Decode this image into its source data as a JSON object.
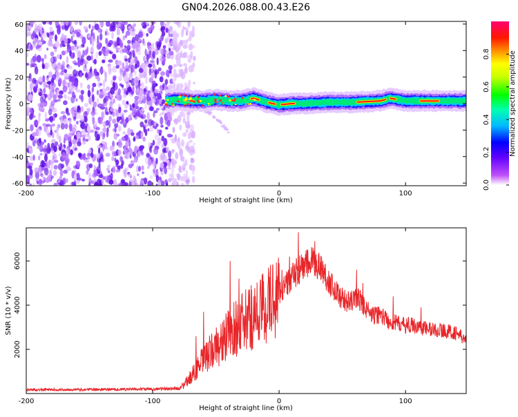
{
  "title": "GN04.2026.088.00.43.E26",
  "chart_data": [
    {
      "type": "heatmap",
      "name": "spectrogram",
      "xlabel": "Height of straight line (km)",
      "ylabel": "Frequency (Hz)",
      "xlim": [
        -200,
        148
      ],
      "ylim": [
        -62,
        62
      ],
      "xticks": [
        -200,
        -100,
        0,
        100
      ],
      "yticks": [
        60,
        40,
        20,
        0,
        -20,
        -40,
        -60
      ],
      "ridge": {
        "x_start": -90,
        "x_end": 148,
        "center_freq": 1,
        "points": [
          [
            -90,
            2
          ],
          [
            -80,
            3
          ],
          [
            -70,
            2
          ],
          [
            -60,
            2
          ],
          [
            -50,
            3
          ],
          [
            -40,
            2
          ],
          [
            -30,
            2
          ],
          [
            -20,
            4
          ],
          [
            -10,
            1
          ],
          [
            0,
            -1
          ],
          [
            10,
            0
          ],
          [
            20,
            0
          ],
          [
            40,
            1
          ],
          [
            60,
            1
          ],
          [
            80,
            2
          ],
          [
            88,
            4
          ],
          [
            100,
            2
          ],
          [
            120,
            2
          ],
          [
            148,
            2
          ]
        ],
        "hot_segments": [
          [
            -75,
            -68
          ],
          [
            -22,
            -16
          ],
          [
            -8,
            -3
          ],
          [
            2,
            12
          ],
          [
            62,
            84
          ],
          [
            88,
            92
          ],
          [
            112,
            126
          ]
        ]
      },
      "noise_region": {
        "x_start": -200,
        "x_end": -77,
        "amplitude_range": [
          0.0,
          0.25
        ]
      },
      "drift_tail": {
        "points": [
          [
            -62,
            -4
          ],
          [
            -50,
            -10
          ],
          [
            -40,
            -22
          ]
        ]
      },
      "colorbar": {
        "label": "Normalized spectral amplitude",
        "range": [
          0.0,
          1.0
        ],
        "ticks": [
          0.0,
          0.2,
          0.4,
          0.6,
          0.8
        ],
        "colors": [
          "#ffffff",
          "#a020f0",
          "#0000ff",
          "#00c0ff",
          "#00ff40",
          "#ffff00",
          "#ff8000",
          "#ff0000",
          "#ff0080"
        ]
      }
    },
    {
      "type": "line",
      "name": "snr",
      "xlabel": "Height of straight line (km)",
      "ylabel": "SNR (10 * v/v)",
      "xlim": [
        -200,
        148
      ],
      "ylim": [
        0,
        7500
      ],
      "xticks": [
        -200,
        -100,
        0,
        100
      ],
      "yticks": [
        2000,
        4000,
        6000
      ],
      "color": "#e8262a",
      "envelope": [
        [
          -200,
          170
        ],
        [
          -150,
          180
        ],
        [
          -100,
          200
        ],
        [
          -80,
          230
        ],
        [
          -75,
          380
        ],
        [
          -68,
          900
        ],
        [
          -60,
          1500
        ],
        [
          -52,
          2000
        ],
        [
          -44,
          2400
        ],
        [
          -36,
          2900
        ],
        [
          -28,
          3200
        ],
        [
          -20,
          3500
        ],
        [
          -12,
          3900
        ],
        [
          -4,
          4300
        ],
        [
          2,
          4700
        ],
        [
          8,
          5100
        ],
        [
          14,
          5500
        ],
        [
          20,
          5800
        ],
        [
          26,
          5950
        ],
        [
          32,
          5800
        ],
        [
          38,
          5200
        ],
        [
          44,
          4700
        ],
        [
          50,
          4300
        ],
        [
          56,
          4100
        ],
        [
          62,
          4400
        ],
        [
          68,
          3900
        ],
        [
          74,
          3500
        ],
        [
          80,
          3600
        ],
        [
          86,
          3300
        ],
        [
          92,
          3200
        ],
        [
          98,
          3100
        ],
        [
          104,
          3100
        ],
        [
          112,
          3000
        ],
        [
          120,
          2900
        ],
        [
          130,
          2850
        ],
        [
          140,
          2750
        ],
        [
          148,
          2400
        ]
      ],
      "spikes": [
        [
          -39,
          6000
        ],
        [
          -60,
          3700
        ],
        [
          -66,
          2600
        ],
        [
          -32,
          5200
        ],
        [
          -22,
          4700
        ],
        [
          2,
          5600
        ],
        [
          8,
          6200
        ],
        [
          15,
          7300
        ],
        [
          22,
          6500
        ],
        [
          28,
          6900
        ],
        [
          61,
          5600
        ],
        [
          66,
          5000
        ],
        [
          90,
          4400
        ],
        [
          112,
          3900
        ]
      ]
    }
  ]
}
